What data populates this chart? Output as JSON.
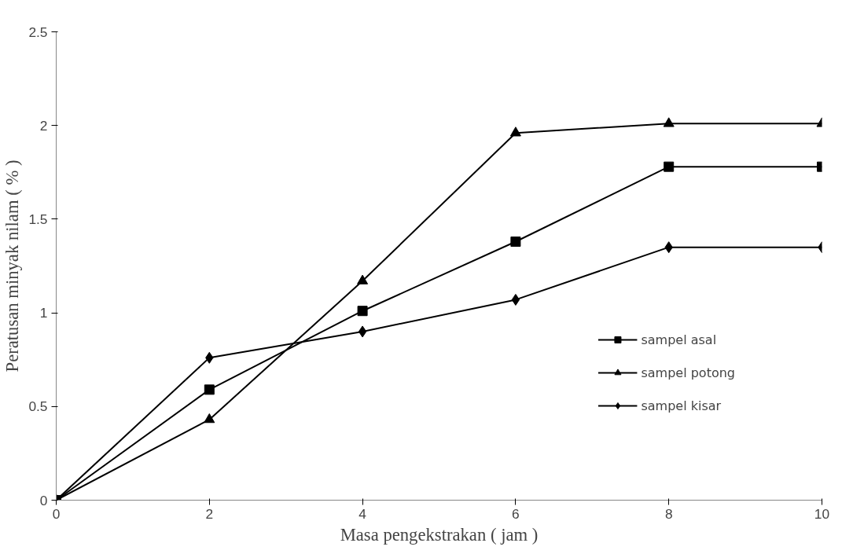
{
  "chart_data": {
    "type": "line",
    "xlabel": "Masa pengekstrakan ( jam )",
    "ylabel": "Peratusan minyak nilam ( % )",
    "x": [
      0,
      2,
      4,
      6,
      8,
      10
    ],
    "series": [
      {
        "name": "sampel asal",
        "color": "#000000",
        "marker": "square",
        "values": [
          0,
          0.59,
          1.01,
          1.38,
          1.78,
          1.78
        ]
      },
      {
        "name": "sampel potong",
        "color": "#000000",
        "marker": "triangle",
        "values": [
          0,
          0.43,
          1.17,
          1.96,
          2.01,
          2.01
        ]
      },
      {
        "name": "sampel kisar",
        "color": "#000000",
        "marker": "diamond",
        "values": [
          0,
          0.76,
          0.9,
          1.07,
          1.35,
          1.35
        ]
      }
    ],
    "xlim": [
      0,
      10
    ],
    "xticks": [
      0,
      2,
      4,
      6,
      8,
      10
    ],
    "ylim": [
      0,
      2.5
    ],
    "yticks": [
      0,
      0.5,
      1,
      1.5,
      2,
      2.5
    ],
    "grid": false,
    "legend": "right",
    "line_style": "solid"
  }
}
